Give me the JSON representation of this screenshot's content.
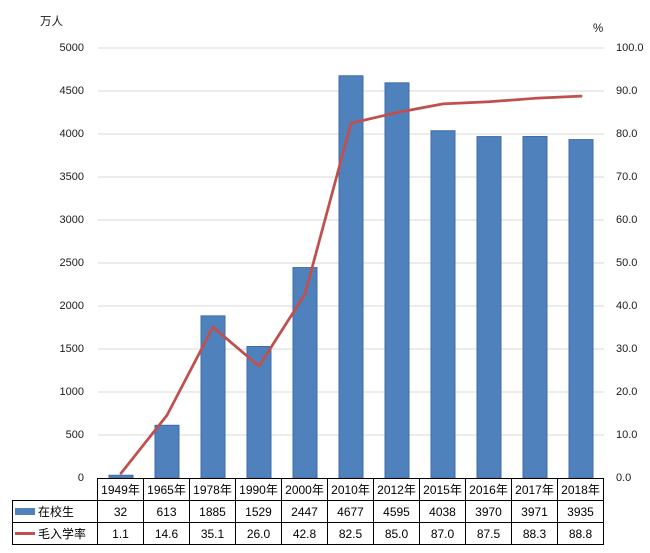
{
  "chart_data": {
    "type": "combo-bar-line",
    "title": "",
    "categories": [
      "1949年",
      "1965年",
      "1978年",
      "1990年",
      "2000年",
      "2010年",
      "2012年",
      "2015年",
      "2016年",
      "2017年",
      "2018年"
    ],
    "series": [
      {
        "name": "在校生",
        "type": "bar",
        "axis": "left",
        "color": "#4f81bd",
        "border_color": "#3c6da8",
        "values": [
          32,
          613,
          1885,
          1529,
          2447,
          4677,
          4595,
          4038,
          3970,
          3971,
          3935
        ],
        "display": [
          "32",
          "613",
          "1885",
          "1529",
          "2447",
          "4677",
          "4595",
          "4038",
          "3970",
          "3971",
          "3935"
        ]
      },
      {
        "name": "毛入学率",
        "type": "line",
        "axis": "right",
        "color": "#c0504d",
        "values": [
          1.1,
          14.6,
          35.1,
          26.0,
          42.8,
          82.5,
          85.0,
          87.0,
          87.5,
          88.3,
          88.8
        ],
        "display": [
          "1.1",
          "14.6",
          "35.1",
          "26.0",
          "42.8",
          "82.5",
          "85.0",
          "87.0",
          "87.5",
          "88.3",
          "88.8"
        ]
      }
    ],
    "left_axis": {
      "title": "万人",
      "min": 0,
      "max": 5000,
      "step": 500,
      "ticks": [
        "0",
        "500",
        "1000",
        "1500",
        "2000",
        "2500",
        "3000",
        "3500",
        "4000",
        "4500",
        "5000"
      ]
    },
    "right_axis": {
      "title": "%",
      "min": 0,
      "max": 100,
      "step": 10,
      "ticks": [
        "0.0",
        "10.0",
        "20.0",
        "30.0",
        "40.0",
        "50.0",
        "60.0",
        "70.0",
        "80.0",
        "90.0",
        "100.0"
      ]
    },
    "gridline_color": "#d9d9d9",
    "axis_line_color": "#000000",
    "grid": true,
    "legend_position": "data-table",
    "data_table": true
  }
}
